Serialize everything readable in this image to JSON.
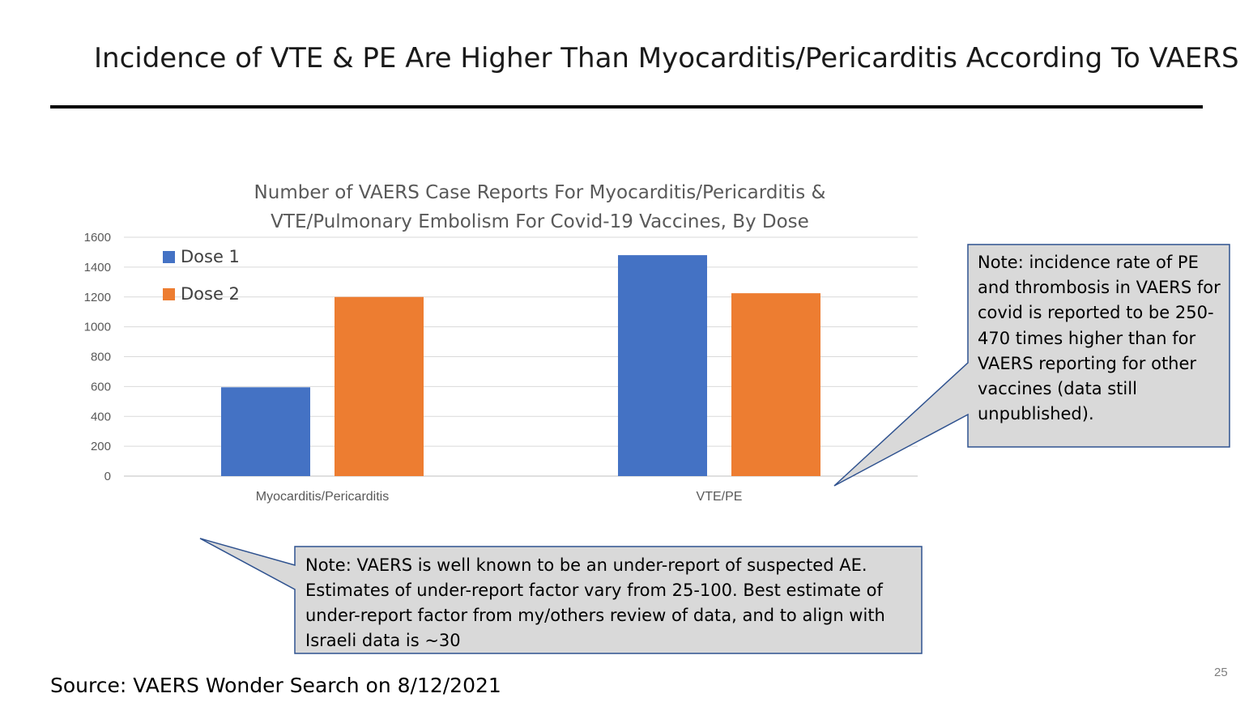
{
  "slide": {
    "title": "Incidence of VTE & PE Are Higher Than Myocarditis/Pericarditis According To VAERS",
    "source": "Source: VAERS Wonder Search on 8/12/2021",
    "page_number": "25"
  },
  "notes": {
    "right": "Note: incidence rate of PE and thrombosis in VAERS for covid is reported to be 250-470 times higher than for VAERS reporting for other vaccines (data still unpublished).",
    "bottom": "Note: VAERS is well known to be an under-report of suspected AE. Estimates of under-report factor vary from 25-100.  Best estimate of under-report factor from my/others review of data, and to align with Israeli data is ~30"
  },
  "chart_data": {
    "type": "bar",
    "title_line1": "Number of VAERS Case Reports For Myocarditis/Pericarditis &",
    "title_line2": "VTE/Pulmonary Embolism  For Covid-19 Vaccines, By Dose",
    "categories": [
      "Myocarditis/Pericarditis",
      "VTE/PE"
    ],
    "series": [
      {
        "name": "Dose 1",
        "color": "#4472c4",
        "values": [
          595,
          1480
        ]
      },
      {
        "name": "Dose 2",
        "color": "#ed7d31",
        "values": [
          1200,
          1225
        ]
      }
    ],
    "ylim": [
      0,
      1600
    ],
    "yticks": [
      "0",
      "200",
      "400",
      "600",
      "800",
      "1000",
      "1200",
      "1400",
      "1600"
    ],
    "grid": true,
    "legend_position": "top-left"
  }
}
